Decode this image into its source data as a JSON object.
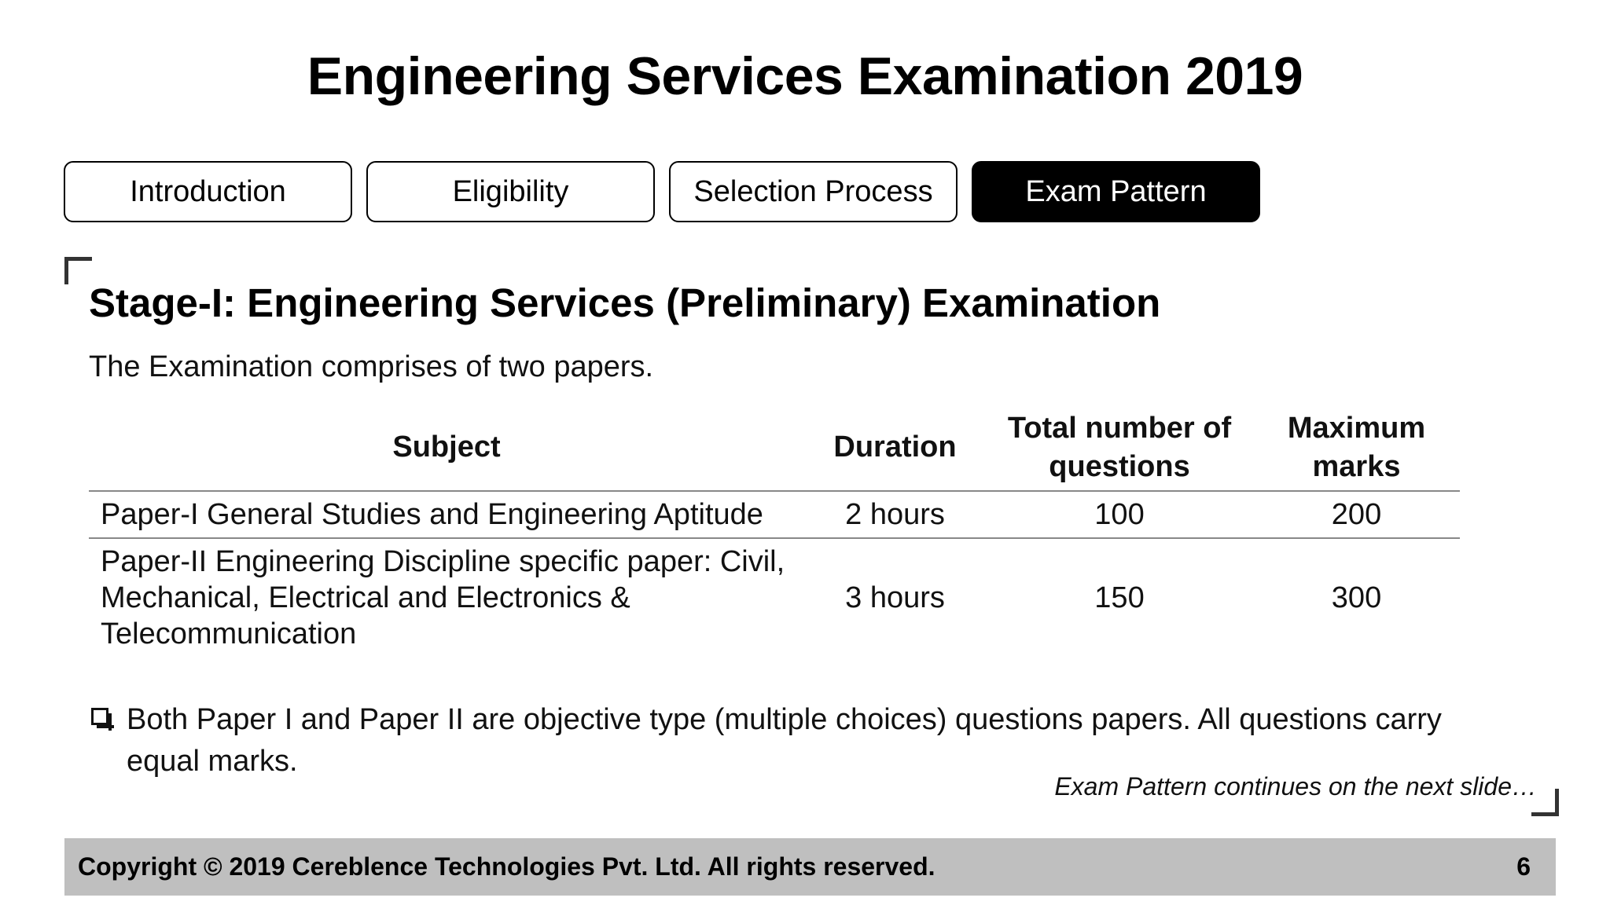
{
  "title": "Engineering Services Examination 2019",
  "tabs": [
    {
      "label": "Introduction",
      "active": false
    },
    {
      "label": "Eligibility",
      "active": false
    },
    {
      "label": "Selection Process",
      "active": false
    },
    {
      "label": "Exam Pattern",
      "active": true
    }
  ],
  "section": {
    "heading": "Stage-I: Engineering Services (Preliminary) Examination",
    "intro": "The Examination comprises of two papers."
  },
  "table": {
    "headers": [
      "Subject",
      "Duration",
      "Total number of questions",
      "Maximum marks"
    ],
    "rows": [
      [
        "Paper-I General Studies and Engineering Aptitude",
        "2 hours",
        "100",
        "200"
      ],
      [
        "Paper-II Engineering Discipline specific paper: Civil, Mechanical, Electrical and Electronics & Telecommunication",
        "3 hours",
        "150",
        "300"
      ]
    ]
  },
  "bullet": "Both Paper I and Paper II are objective type (multiple choices) questions papers. All questions carry equal marks.",
  "note": "Exam Pattern continues on the next slide…",
  "footer": {
    "copyright": "Copyright © 2019 Cereblence Technologies Pvt. Ltd. All rights reserved.",
    "page_number": "6"
  }
}
